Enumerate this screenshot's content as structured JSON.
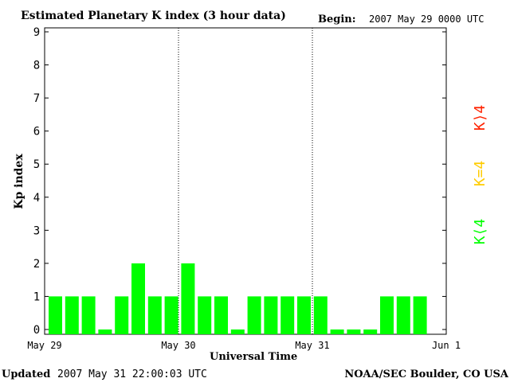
{
  "header": {
    "title": "Estimated Planetary K index (3 hour data)",
    "begin_label": "Begin:",
    "begin_value": "2007 May 29 0000 UTC"
  },
  "footer": {
    "updated_label": "Updated",
    "updated_value": "2007 May 31 22:00:03 UTC",
    "source": "NOAA/SEC Boulder, CO USA"
  },
  "legend": {
    "items": [
      {
        "label": "K⟨4",
        "color": "#00ff00"
      },
      {
        "label": "K=4",
        "color": "#ffcc00"
      },
      {
        "label": "K⟩4",
        "color": "#ff2200"
      }
    ]
  },
  "chart_data": {
    "type": "bar",
    "title": "Estimated Planetary K index (3 hour data)",
    "xlabel": "Universal Time",
    "ylabel": "Kp index",
    "ylim": [
      0,
      9
    ],
    "yticks": [
      "0",
      "1",
      "2",
      "3",
      "4",
      "5",
      "6",
      "7",
      "8",
      "9"
    ],
    "xticks": [
      "May 29",
      "May 30",
      "May 31",
      "Jun 1"
    ],
    "grid": false,
    "bar_color": "#00ff00",
    "values": [
      1,
      1,
      1,
      0,
      1,
      2,
      1,
      1,
      2,
      1,
      1,
      0,
      1,
      1,
      1,
      1,
      1,
      0,
      0,
      0,
      1,
      1,
      1
    ]
  }
}
